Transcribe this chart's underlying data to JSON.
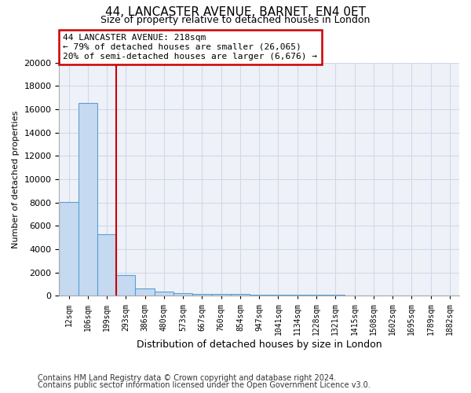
{
  "title": "44, LANCASTER AVENUE, BARNET, EN4 0ET",
  "subtitle": "Size of property relative to detached houses in London",
  "xlabel": "Distribution of detached houses by size in London",
  "ylabel": "Number of detached properties",
  "footer_line1": "Contains HM Land Registry data © Crown copyright and database right 2024.",
  "footer_line2": "Contains public sector information licensed under the Open Government Licence v3.0.",
  "annotation_line1": "44 LANCASTER AVENUE: 218sqm",
  "annotation_line2": "← 79% of detached houses are smaller (26,065)",
  "annotation_line3": "20% of semi-detached houses are larger (6,676) →",
  "bar_color": "#c5d9f0",
  "bar_edge_color": "#5a9fd4",
  "vline_color": "#cc0000",
  "annotation_box_edgecolor": "#cc0000",
  "grid_color": "#d0d8e8",
  "bg_color": "#eef2f8",
  "categories": [
    "12sqm",
    "106sqm",
    "199sqm",
    "293sqm",
    "386sqm",
    "480sqm",
    "573sqm",
    "667sqm",
    "760sqm",
    "854sqm",
    "947sqm",
    "1041sqm",
    "1134sqm",
    "1228sqm",
    "1321sqm",
    "1415sqm",
    "1508sqm",
    "1602sqm",
    "1695sqm",
    "1789sqm",
    "1882sqm"
  ],
  "values": [
    8050,
    16500,
    5300,
    1750,
    650,
    350,
    250,
    175,
    150,
    125,
    100,
    90,
    75,
    65,
    55,
    50,
    45,
    40,
    35,
    30,
    25
  ],
  "ylim": [
    0,
    20000
  ],
  "yticks": [
    0,
    2000,
    4000,
    6000,
    8000,
    10000,
    12000,
    14000,
    16000,
    18000,
    20000
  ],
  "vline_x_index": 2.5,
  "bar_width": 1.0
}
